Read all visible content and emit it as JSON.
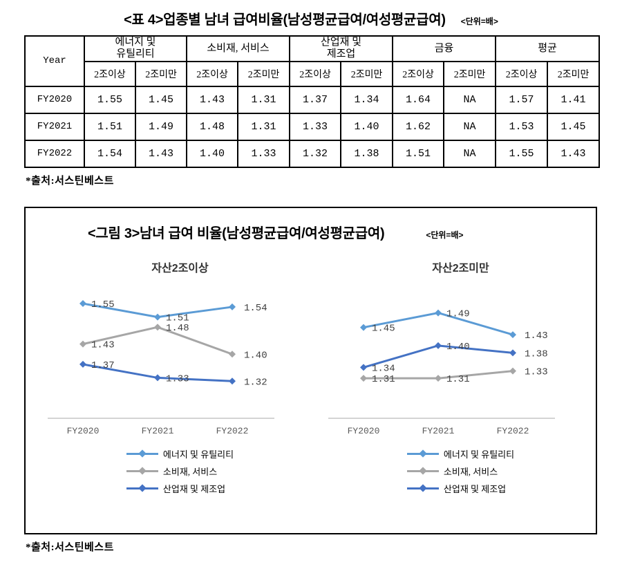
{
  "table_section": {
    "title": "<표 4>업종별 남녀 급여비율(남성평균급여/여성평균급여)",
    "unit": "<단위=배>",
    "source": "*출처:서스틴베스트"
  },
  "table": {
    "corner_label": "Year",
    "column_groups": [
      "에너지 및\n유틸리티",
      "소비재, 서비스",
      "산업재 및\n제조업",
      "금융",
      "평균"
    ],
    "subheaders": [
      "2조이상",
      "2조미만"
    ],
    "rows": [
      {
        "year": "FY2020",
        "values": [
          "1.55",
          "1.45",
          "1.43",
          "1.31",
          "1.37",
          "1.34",
          "1.64",
          "NA",
          "1.57",
          "1.41"
        ]
      },
      {
        "year": "FY2021",
        "values": [
          "1.51",
          "1.49",
          "1.48",
          "1.31",
          "1.33",
          "1.40",
          "1.62",
          "NA",
          "1.53",
          "1.45"
        ]
      },
      {
        "year": "FY2022",
        "values": [
          "1.54",
          "1.43",
          "1.40",
          "1.33",
          "1.32",
          "1.38",
          "1.51",
          "NA",
          "1.55",
          "1.43"
        ]
      }
    ]
  },
  "figure": {
    "title": "<그림 3>남녀 급여 비율(남성평균급여/여성평균급여)",
    "unit": "<단위=배>",
    "source": "*출처:서스틴베스트"
  },
  "chart_data": [
    {
      "type": "line",
      "title": "자산2조이상",
      "x": [
        "FY2020",
        "FY2021",
        "FY2022"
      ],
      "series": [
        {
          "name": "에너지 및 유틸리티",
          "color": "#5B9BD5",
          "values": [
            1.55,
            1.51,
            1.54
          ]
        },
        {
          "name": "소비재, 서비스",
          "color": "#A6A6A6",
          "values": [
            1.43,
            1.48,
            1.4
          ]
        },
        {
          "name": "산업재 및 제조업",
          "color": "#4472C4",
          "values": [
            1.37,
            1.33,
            1.32
          ]
        }
      ],
      "ylim": [
        1.21,
        1.63
      ],
      "grid": false,
      "legend_position": "bottom",
      "marker": "diamond",
      "data_labels": true
    },
    {
      "type": "line",
      "title": "자산2조미만",
      "x": [
        "FY2020",
        "FY2021",
        "FY2022"
      ],
      "series": [
        {
          "name": "에너지 및 유틸리티",
          "color": "#5B9BD5",
          "values": [
            1.45,
            1.49,
            1.43
          ]
        },
        {
          "name": "소비재, 서비스",
          "color": "#A6A6A6",
          "values": [
            1.31,
            1.31,
            1.33
          ]
        },
        {
          "name": "산업재 및 제조업",
          "color": "#4472C4",
          "values": [
            1.34,
            1.4,
            1.38
          ]
        }
      ],
      "ylim": [
        1.2,
        1.59
      ],
      "grid": false,
      "legend_position": "bottom",
      "marker": "diamond",
      "data_labels": true
    }
  ]
}
